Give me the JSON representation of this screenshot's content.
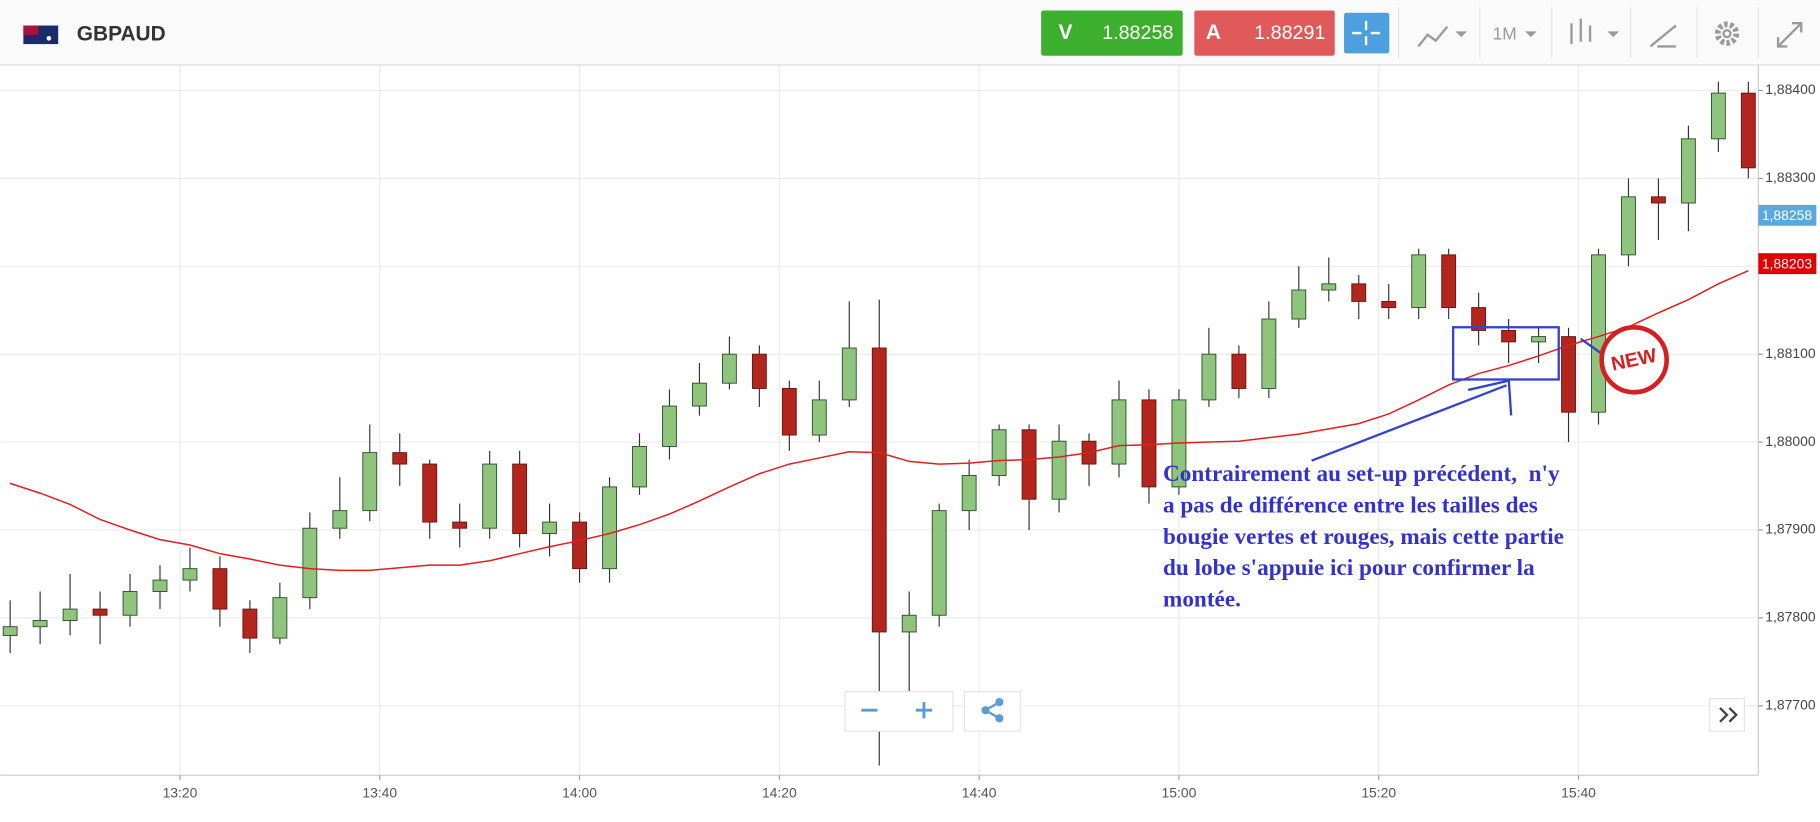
{
  "header": {
    "symbol": "GBPAUD",
    "sell": {
      "label": "V",
      "price": "1.88258"
    },
    "buy": {
      "label": "A",
      "price": "1.88291"
    },
    "timeframe": "1M"
  },
  "chart_data": {
    "type": "candlestick",
    "x": [
      "13:03",
      "13:06",
      "13:09",
      "13:12",
      "13:15",
      "13:18",
      "13:21",
      "13:24",
      "13:27",
      "13:30",
      "13:33",
      "13:36",
      "13:39",
      "13:42",
      "13:45",
      "13:48",
      "13:51",
      "13:54",
      "13:57",
      "14:00",
      "14:03",
      "14:06",
      "14:09",
      "14:12",
      "14:15",
      "14:18",
      "14:21",
      "14:24",
      "14:27",
      "14:30",
      "14:33",
      "14:36",
      "14:39",
      "14:42",
      "14:45",
      "14:48",
      "14:51",
      "14:54",
      "14:57",
      "15:00",
      "15:03",
      "15:06",
      "15:09",
      "15:12",
      "15:15",
      "15:18",
      "15:21",
      "15:24",
      "15:27",
      "15:30",
      "15:33",
      "15:36",
      "15:39",
      "15:42",
      "15:45",
      "15:48",
      "15:51",
      "15:54",
      "15:57"
    ],
    "open": [
      1.8778,
      1.8779,
      1.87797,
      1.8781,
      1.87803,
      1.8783,
      1.87843,
      1.87856,
      1.8781,
      1.87777,
      1.87823,
      1.87902,
      1.87922,
      1.87988,
      1.87975,
      1.87909,
      1.87902,
      1.87975,
      1.87896,
      1.87909,
      1.87856,
      1.87949,
      1.87995,
      1.88041,
      1.88067,
      1.881,
      1.88061,
      1.88008,
      1.88048,
      1.88107,
      1.87784,
      1.87803,
      1.87922,
      1.87962,
      1.88014,
      1.87935,
      1.88001,
      1.87975,
      1.88048,
      1.87949,
      1.88048,
      1.881,
      1.88061,
      1.8814,
      1.88173,
      1.8818,
      1.8816,
      1.88153,
      1.88213,
      1.88153,
      1.88127,
      1.88114,
      1.8812,
      1.88034,
      1.88213,
      1.88279,
      1.88272,
      1.88345,
      1.88397
    ],
    "high": [
      1.8782,
      1.8783,
      1.8785,
      1.8783,
      1.8785,
      1.8786,
      1.8788,
      1.8787,
      1.8782,
      1.8784,
      1.8792,
      1.8796,
      1.8802,
      1.8801,
      1.8798,
      1.8793,
      1.8799,
      1.8799,
      1.8793,
      1.8792,
      1.8796,
      1.8801,
      1.8806,
      1.8809,
      1.8812,
      1.8811,
      1.8807,
      1.8807,
      1.8816,
      1.88162,
      1.8783,
      1.8793,
      1.8798,
      1.8802,
      1.8802,
      1.8802,
      1.8801,
      1.8807,
      1.8806,
      1.8806,
      1.8813,
      1.8811,
      1.8816,
      1.882,
      1.8821,
      1.8819,
      1.8818,
      1.8822,
      1.8822,
      1.8817,
      1.8814,
      1.8813,
      1.8813,
      1.8822,
      1.883,
      1.883,
      1.8836,
      1.8841,
      1.8841
    ],
    "low": [
      1.8776,
      1.8777,
      1.8778,
      1.8777,
      1.8779,
      1.8781,
      1.8783,
      1.8779,
      1.8776,
      1.8777,
      1.8781,
      1.8789,
      1.8791,
      1.8795,
      1.8789,
      1.8788,
      1.8789,
      1.8788,
      1.8787,
      1.8784,
      1.8784,
      1.8794,
      1.8798,
      1.8803,
      1.8806,
      1.8804,
      1.8799,
      1.88,
      1.8804,
      1.87632,
      1.87711,
      1.8779,
      1.879,
      1.8795,
      1.879,
      1.8792,
      1.8795,
      1.8796,
      1.8793,
      1.8794,
      1.8804,
      1.8805,
      1.8805,
      1.8813,
      1.8816,
      1.8814,
      1.8814,
      1.8814,
      1.8814,
      1.8811,
      1.8809,
      1.8809,
      1.88,
      1.8802,
      1.882,
      1.8823,
      1.8824,
      1.8833,
      1.883
    ],
    "close": [
      1.8779,
      1.87797,
      1.8781,
      1.87803,
      1.8783,
      1.87843,
      1.87856,
      1.8781,
      1.87777,
      1.87823,
      1.87902,
      1.87922,
      1.87988,
      1.87975,
      1.87909,
      1.87902,
      1.87975,
      1.87896,
      1.87909,
      1.87856,
      1.87949,
      1.87995,
      1.88041,
      1.88067,
      1.881,
      1.88061,
      1.88008,
      1.88048,
      1.88107,
      1.87784,
      1.87803,
      1.87922,
      1.87962,
      1.88014,
      1.87935,
      1.88001,
      1.87975,
      1.88048,
      1.87949,
      1.88048,
      1.881,
      1.88061,
      1.8814,
      1.88173,
      1.8818,
      1.8816,
      1.88153,
      1.88213,
      1.88153,
      1.88127,
      1.88114,
      1.8812,
      1.88034,
      1.88213,
      1.88279,
      1.88272,
      1.88345,
      1.88397,
      1.88312
    ],
    "colors": {
      "up": "#8fc47c",
      "down": "#b3261e"
    },
    "overlay": {
      "color": "#e02020",
      "values": [
        1.87953,
        1.87942,
        1.87929,
        1.87912,
        1.879,
        1.87889,
        1.87883,
        1.87873,
        1.87867,
        1.8786,
        1.87856,
        1.87854,
        1.87854,
        1.87857,
        1.8786,
        1.8786,
        1.87865,
        1.87873,
        1.87881,
        1.87888,
        1.87896,
        1.87906,
        1.87918,
        1.87933,
        1.87949,
        1.87964,
        1.87975,
        1.87982,
        1.87989,
        1.87988,
        1.87978,
        1.87975,
        1.87976,
        1.87979,
        1.8798,
        1.87983,
        1.87988,
        1.87996,
        1.87997,
        1.87999,
        1.88,
        1.88001,
        1.88005,
        1.88009,
        1.88015,
        1.88021,
        1.88032,
        1.88048,
        1.88065,
        1.88078,
        1.88087,
        1.88098,
        1.8811,
        1.8812,
        1.88131,
        1.88147,
        1.88162,
        1.8818,
        1.88195
      ]
    },
    "xlim": [
      "13:02",
      "15:58"
    ],
    "xticks": [
      "13:20",
      "13:40",
      "14:00",
      "14:20",
      "14:40",
      "15:00",
      "15:20",
      "15:40"
    ],
    "ylim": [
      1.87621,
      1.88429
    ],
    "yticks": [
      {
        "value": 1.884,
        "label": "1,88400"
      },
      {
        "value": 1.883,
        "label": "1,88300"
      },
      {
        "value": 1.882,
        "label": "1,88200"
      },
      {
        "value": 1.881,
        "label": "1,88100"
      },
      {
        "value": 1.88,
        "label": "1,88000"
      },
      {
        "value": 1.879,
        "label": "1,87900"
      },
      {
        "value": 1.878,
        "label": "1,87800"
      },
      {
        "value": 1.877,
        "label": "1,87700"
      }
    ],
    "price_markers": [
      {
        "value": 1.88258,
        "label": "1,88258",
        "color": "#5aa9dc"
      },
      {
        "value": 1.88203,
        "label": "1,88203",
        "color": "#e00000"
      }
    ],
    "grid": true,
    "annotation": {
      "lines": [
        "Contrairement au set-up précédent,  n'y",
        "a pas de différence entre les tailles des",
        "bougie vertes et rouges, mais cette partie",
        "du lobe s'appuie ici pour confirmer la",
        "montée."
      ],
      "badge": "NEW"
    }
  }
}
